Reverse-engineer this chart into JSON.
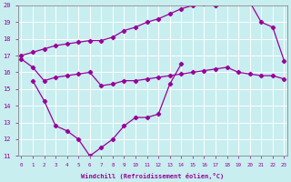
{
  "xlabel": "Windchill (Refroidissement éolien,°C)",
  "bg_color": "#c8eef0",
  "line_color": "#990099",
  "grid_color": "#ffffff",
  "xmin": 0,
  "xmax": 23,
  "ymin": 11,
  "ymax": 20,
  "series1_x": [
    0,
    1,
    2,
    3,
    4,
    5,
    6,
    7,
    8,
    9,
    10,
    11,
    12,
    13,
    14,
    15,
    16,
    17,
    18,
    19,
    20,
    21,
    22,
    23
  ],
  "series1_y": [
    17.0,
    17.2,
    17.4,
    17.6,
    17.7,
    17.8,
    17.9,
    17.9,
    18.1,
    18.5,
    18.7,
    19.0,
    19.2,
    19.5,
    19.8,
    20.0,
    20.1,
    20.0,
    20.2,
    20.2,
    20.2,
    19.0,
    18.7,
    16.7
  ],
  "series2_x": [
    0,
    1,
    2,
    3,
    4,
    5,
    6,
    7,
    8,
    9,
    10,
    11,
    12,
    13,
    14,
    15,
    16,
    17,
    18,
    19,
    20,
    21,
    22,
    23
  ],
  "series2_y": [
    16.8,
    16.3,
    15.5,
    15.7,
    15.8,
    15.9,
    16.0,
    15.2,
    15.3,
    15.5,
    15.5,
    15.6,
    15.7,
    15.8,
    15.9,
    16.0,
    16.1,
    16.2,
    16.3,
    16.0,
    15.9,
    15.8,
    15.8,
    15.6
  ],
  "series3_x": [
    1,
    2,
    3,
    4,
    5,
    6,
    7,
    8,
    9,
    10,
    11,
    12,
    13,
    14
  ],
  "series3_y": [
    15.5,
    14.3,
    12.8,
    12.5,
    12.0,
    11.0,
    11.5,
    12.0,
    12.8,
    13.3,
    13.3,
    13.5,
    15.3,
    16.5
  ]
}
